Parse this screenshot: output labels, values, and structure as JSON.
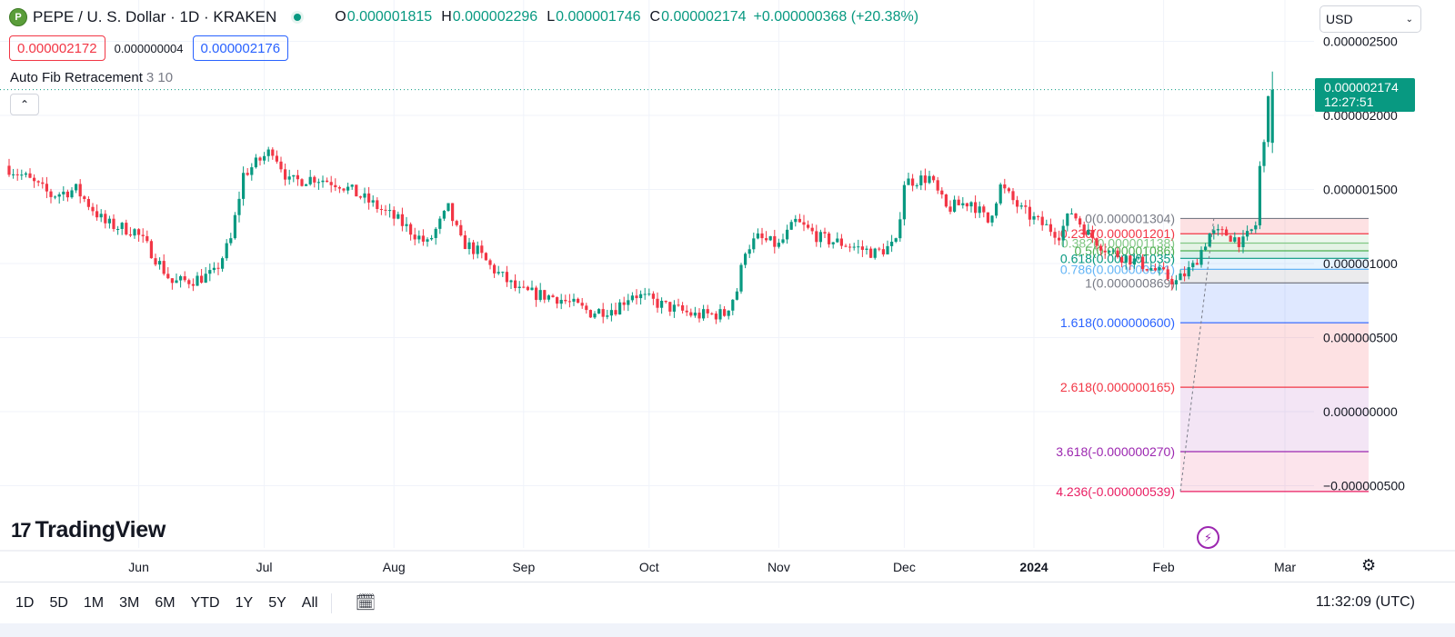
{
  "header": {
    "symbol_icon": "pepe-coin-icon",
    "symbol_title": "PEPE / U. S. Dollar · 1D · KRAKEN",
    "ohlc": {
      "o_label": "O",
      "o": "0.000001815",
      "h_label": "H",
      "h": "0.000002296",
      "l_label": "L",
      "l": "0.000001746",
      "c_label": "C",
      "c": "0.000002174",
      "change": "+0.000000368 (+20.38%)"
    },
    "sell_price": "0.000002172",
    "spread": "0.000000004",
    "buy_price": "0.000002176"
  },
  "indicator": {
    "name": "Auto Fib Retracement",
    "params": "3 10"
  },
  "currency": "USD",
  "last_price": {
    "value": "0.000002174",
    "countdown": "12:27:51",
    "color": "#089981"
  },
  "brand": "TradingView",
  "bottom_bar": {
    "ranges": [
      "1D",
      "5D",
      "1M",
      "3M",
      "6M",
      "YTD",
      "1Y",
      "5Y",
      "All"
    ],
    "clock": "11:32:09 (UTC)"
  },
  "colors": {
    "up": "#089981",
    "down": "#f23645",
    "grid": "#f0f3fa"
  },
  "chart_data": {
    "type": "candlestick",
    "price_axis": {
      "ticks": [
        {
          "value": 2.5e-06,
          "label": "0.000002500"
        },
        {
          "value": 2e-06,
          "label": "0.000002000"
        },
        {
          "value": 1.5e-06,
          "label": "0.000001500"
        },
        {
          "value": 1e-06,
          "label": "0.000001000"
        },
        {
          "value": 5e-07,
          "label": "0.000000500"
        },
        {
          "value": 0.0,
          "label": "0.000000000"
        },
        {
          "value": -5e-07,
          "label": "−0.000000500"
        }
      ]
    },
    "time_axis": {
      "labels": [
        {
          "label": "Jun",
          "date": "2023-06-01"
        },
        {
          "label": "Jul",
          "date": "2023-07-01"
        },
        {
          "label": "Aug",
          "date": "2023-08-01"
        },
        {
          "label": "Sep",
          "date": "2023-09-01"
        },
        {
          "label": "Oct",
          "date": "2023-10-01"
        },
        {
          "label": "Nov",
          "date": "2023-11-01"
        },
        {
          "label": "Dec",
          "date": "2023-12-01"
        },
        {
          "label": "2024",
          "date": "2024-01-01",
          "bold": true
        },
        {
          "label": "Feb",
          "date": "2024-02-01"
        },
        {
          "label": "Mar",
          "date": "2024-03-01"
        }
      ]
    },
    "price_anchors": [
      {
        "date": "2023-05-01",
        "price": 1.66e-06
      },
      {
        "date": "2023-05-06",
        "price": 1.58e-06
      },
      {
        "date": "2023-05-12",
        "price": 1.46e-06
      },
      {
        "date": "2023-05-18",
        "price": 1.5e-06
      },
      {
        "date": "2023-05-25",
        "price": 1.27e-06
      },
      {
        "date": "2023-06-01",
        "price": 1.22e-06
      },
      {
        "date": "2023-06-05",
        "price": 1.08e-06
      },
      {
        "date": "2023-06-10",
        "price": 8.7e-07
      },
      {
        "date": "2023-06-15",
        "price": 8.9e-07
      },
      {
        "date": "2023-06-20",
        "price": 9.3e-07
      },
      {
        "date": "2023-06-24",
        "price": 1.16e-06
      },
      {
        "date": "2023-06-27",
        "price": 1.6e-06
      },
      {
        "date": "2023-07-01",
        "price": 1.7e-06
      },
      {
        "date": "2023-07-04",
        "price": 1.77e-06
      },
      {
        "date": "2023-07-08",
        "price": 1.55e-06
      },
      {
        "date": "2023-07-14",
        "price": 1.58e-06
      },
      {
        "date": "2023-07-20",
        "price": 1.54e-06
      },
      {
        "date": "2023-07-28",
        "price": 1.4e-06
      },
      {
        "date": "2023-08-03",
        "price": 1.29e-06
      },
      {
        "date": "2023-08-10",
        "price": 1.13e-06
      },
      {
        "date": "2023-08-15",
        "price": 1.37e-06
      },
      {
        "date": "2023-08-18",
        "price": 1.15e-06
      },
      {
        "date": "2023-08-22",
        "price": 1.08e-06
      },
      {
        "date": "2023-08-25",
        "price": 9.8e-07
      },
      {
        "date": "2023-09-01",
        "price": 8.1e-07
      },
      {
        "date": "2023-09-10",
        "price": 7.7e-07
      },
      {
        "date": "2023-09-18",
        "price": 6.7e-07
      },
      {
        "date": "2023-09-24",
        "price": 7e-07
      },
      {
        "date": "2023-09-28",
        "price": 8e-07
      },
      {
        "date": "2023-10-05",
        "price": 7.2e-07
      },
      {
        "date": "2023-10-13",
        "price": 6.5e-07
      },
      {
        "date": "2023-10-20",
        "price": 6.6e-07
      },
      {
        "date": "2023-10-23",
        "price": 8.2e-07
      },
      {
        "date": "2023-10-25",
        "price": 1.1e-06
      },
      {
        "date": "2023-10-28",
        "price": 1.17e-06
      },
      {
        "date": "2023-11-02",
        "price": 1.12e-06
      },
      {
        "date": "2023-11-06",
        "price": 1.28e-06
      },
      {
        "date": "2023-11-12",
        "price": 1.17e-06
      },
      {
        "date": "2023-11-18",
        "price": 1.13e-06
      },
      {
        "date": "2023-11-25",
        "price": 1.07e-06
      },
      {
        "date": "2023-11-30",
        "price": 1.13e-06
      },
      {
        "date": "2023-12-02",
        "price": 1.55e-06
      },
      {
        "date": "2023-12-08",
        "price": 1.58e-06
      },
      {
        "date": "2023-12-12",
        "price": 1.37e-06
      },
      {
        "date": "2023-12-18",
        "price": 1.42e-06
      },
      {
        "date": "2023-12-22",
        "price": 1.28e-06
      },
      {
        "date": "2023-12-25",
        "price": 1.52e-06
      },
      {
        "date": "2023-12-30",
        "price": 1.36e-06
      },
      {
        "date": "2024-01-03",
        "price": 1.28e-06
      },
      {
        "date": "2024-01-08",
        "price": 1.2e-06
      },
      {
        "date": "2024-01-11",
        "price": 1.35e-06
      },
      {
        "date": "2024-01-15",
        "price": 1.2e-06
      },
      {
        "date": "2024-01-20",
        "price": 1.08e-06
      },
      {
        "date": "2024-01-25",
        "price": 1.03e-06
      },
      {
        "date": "2024-01-30",
        "price": 9.68e-07
      },
      {
        "date": "2024-02-05",
        "price": 8.75e-07
      },
      {
        "date": "2024-02-09",
        "price": 9.8e-07
      },
      {
        "date": "2024-02-13",
        "price": 1.2e-06
      },
      {
        "date": "2024-02-17",
        "price": 1.2e-06
      },
      {
        "date": "2024-02-21",
        "price": 1.14e-06
      },
      {
        "date": "2024-02-24",
        "price": 1.26e-06
      },
      {
        "date": "2024-02-25",
        "price": 1.65e-06
      },
      {
        "date": "2024-02-26",
        "price": 1.8e-06
      },
      {
        "date": "2024-02-27",
        "price": 2.174e-06
      }
    ],
    "last_candle": {
      "date": "2024-02-27",
      "open": 1.815e-06,
      "high": 2.296e-06,
      "low": 1.746e-06,
      "close": 2.174e-06
    },
    "fib": {
      "start_date": "2024-02-05",
      "end_date": "2024-03-21",
      "levels": [
        {
          "ratio": 0,
          "label": "0(0.000001304)",
          "price": 1.304e-06,
          "color": "#787b86",
          "fill": ""
        },
        {
          "ratio": 0.236,
          "label": "0.236(0.000001201)",
          "price": 1.201e-06,
          "color": "#f23645",
          "fill": "rgba(242,54,69,0.15)"
        },
        {
          "ratio": 0.382,
          "label": "0.382(0.000001138)",
          "price": 1.138e-06,
          "color": "#81c784",
          "fill": "rgba(129,199,132,0.15)"
        },
        {
          "ratio": 0.5,
          "label": "0.5(0.000001086)",
          "price": 1.086e-06,
          "color": "#4caf50",
          "fill": "rgba(76,175,80,0.15)"
        },
        {
          "ratio": 0.618,
          "label": "0.618(0.000001035)",
          "price": 1.035e-06,
          "color": "#089981",
          "fill": "rgba(8,153,129,0.15)"
        },
        {
          "ratio": 0.786,
          "label": "0.786(0.000000961)",
          "price": 9.61e-07,
          "color": "#64b5f6",
          "fill": "rgba(100,181,246,0.15)"
        },
        {
          "ratio": 1,
          "label": "1(0.000000869)",
          "price": 8.69e-07,
          "color": "#787b86",
          "fill": "rgba(120,123,134,0.15)"
        },
        {
          "ratio": 1.618,
          "label": "1.618(0.000000600)",
          "price": 6e-07,
          "color": "#2962ff",
          "fill": "rgba(41,98,255,0.15)"
        },
        {
          "ratio": 2.618,
          "label": "2.618(0.000000165)",
          "price": 1.65e-07,
          "color": "#f23645",
          "fill": "rgba(242,54,69,0.15)"
        },
        {
          "ratio": 3.618,
          "label": "3.618(-0.000000270)",
          "price": -2.7e-07,
          "color": "#9c27b0",
          "fill": "rgba(156,39,176,0.12)"
        },
        {
          "ratio": 4.236,
          "label": "4.236(-0.000000539)",
          "price": -5.39e-07,
          "color": "#e91e63",
          "fill": "rgba(233,30,99,0.12)"
        }
      ]
    }
  }
}
